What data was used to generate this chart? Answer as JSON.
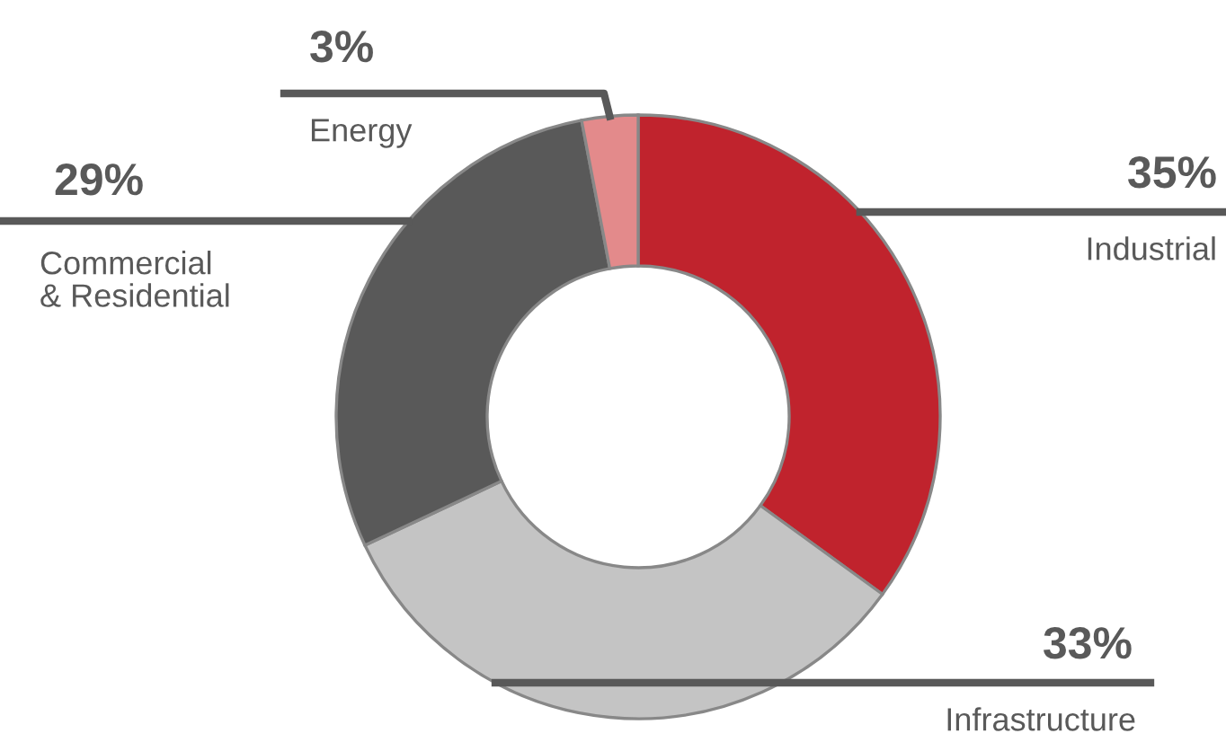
{
  "chart_data": {
    "type": "donut",
    "categories": [
      "Industrial",
      "Infrastructure",
      "Commercial\n& Residential",
      "Energy"
    ],
    "values": [
      35,
      33,
      29,
      3
    ],
    "value_labels": [
      "35%",
      "33%",
      "29%",
      "3%"
    ],
    "colors": [
      "#c0232d",
      "#c4c4c4",
      "#595959",
      "#e38a8b"
    ]
  }
}
